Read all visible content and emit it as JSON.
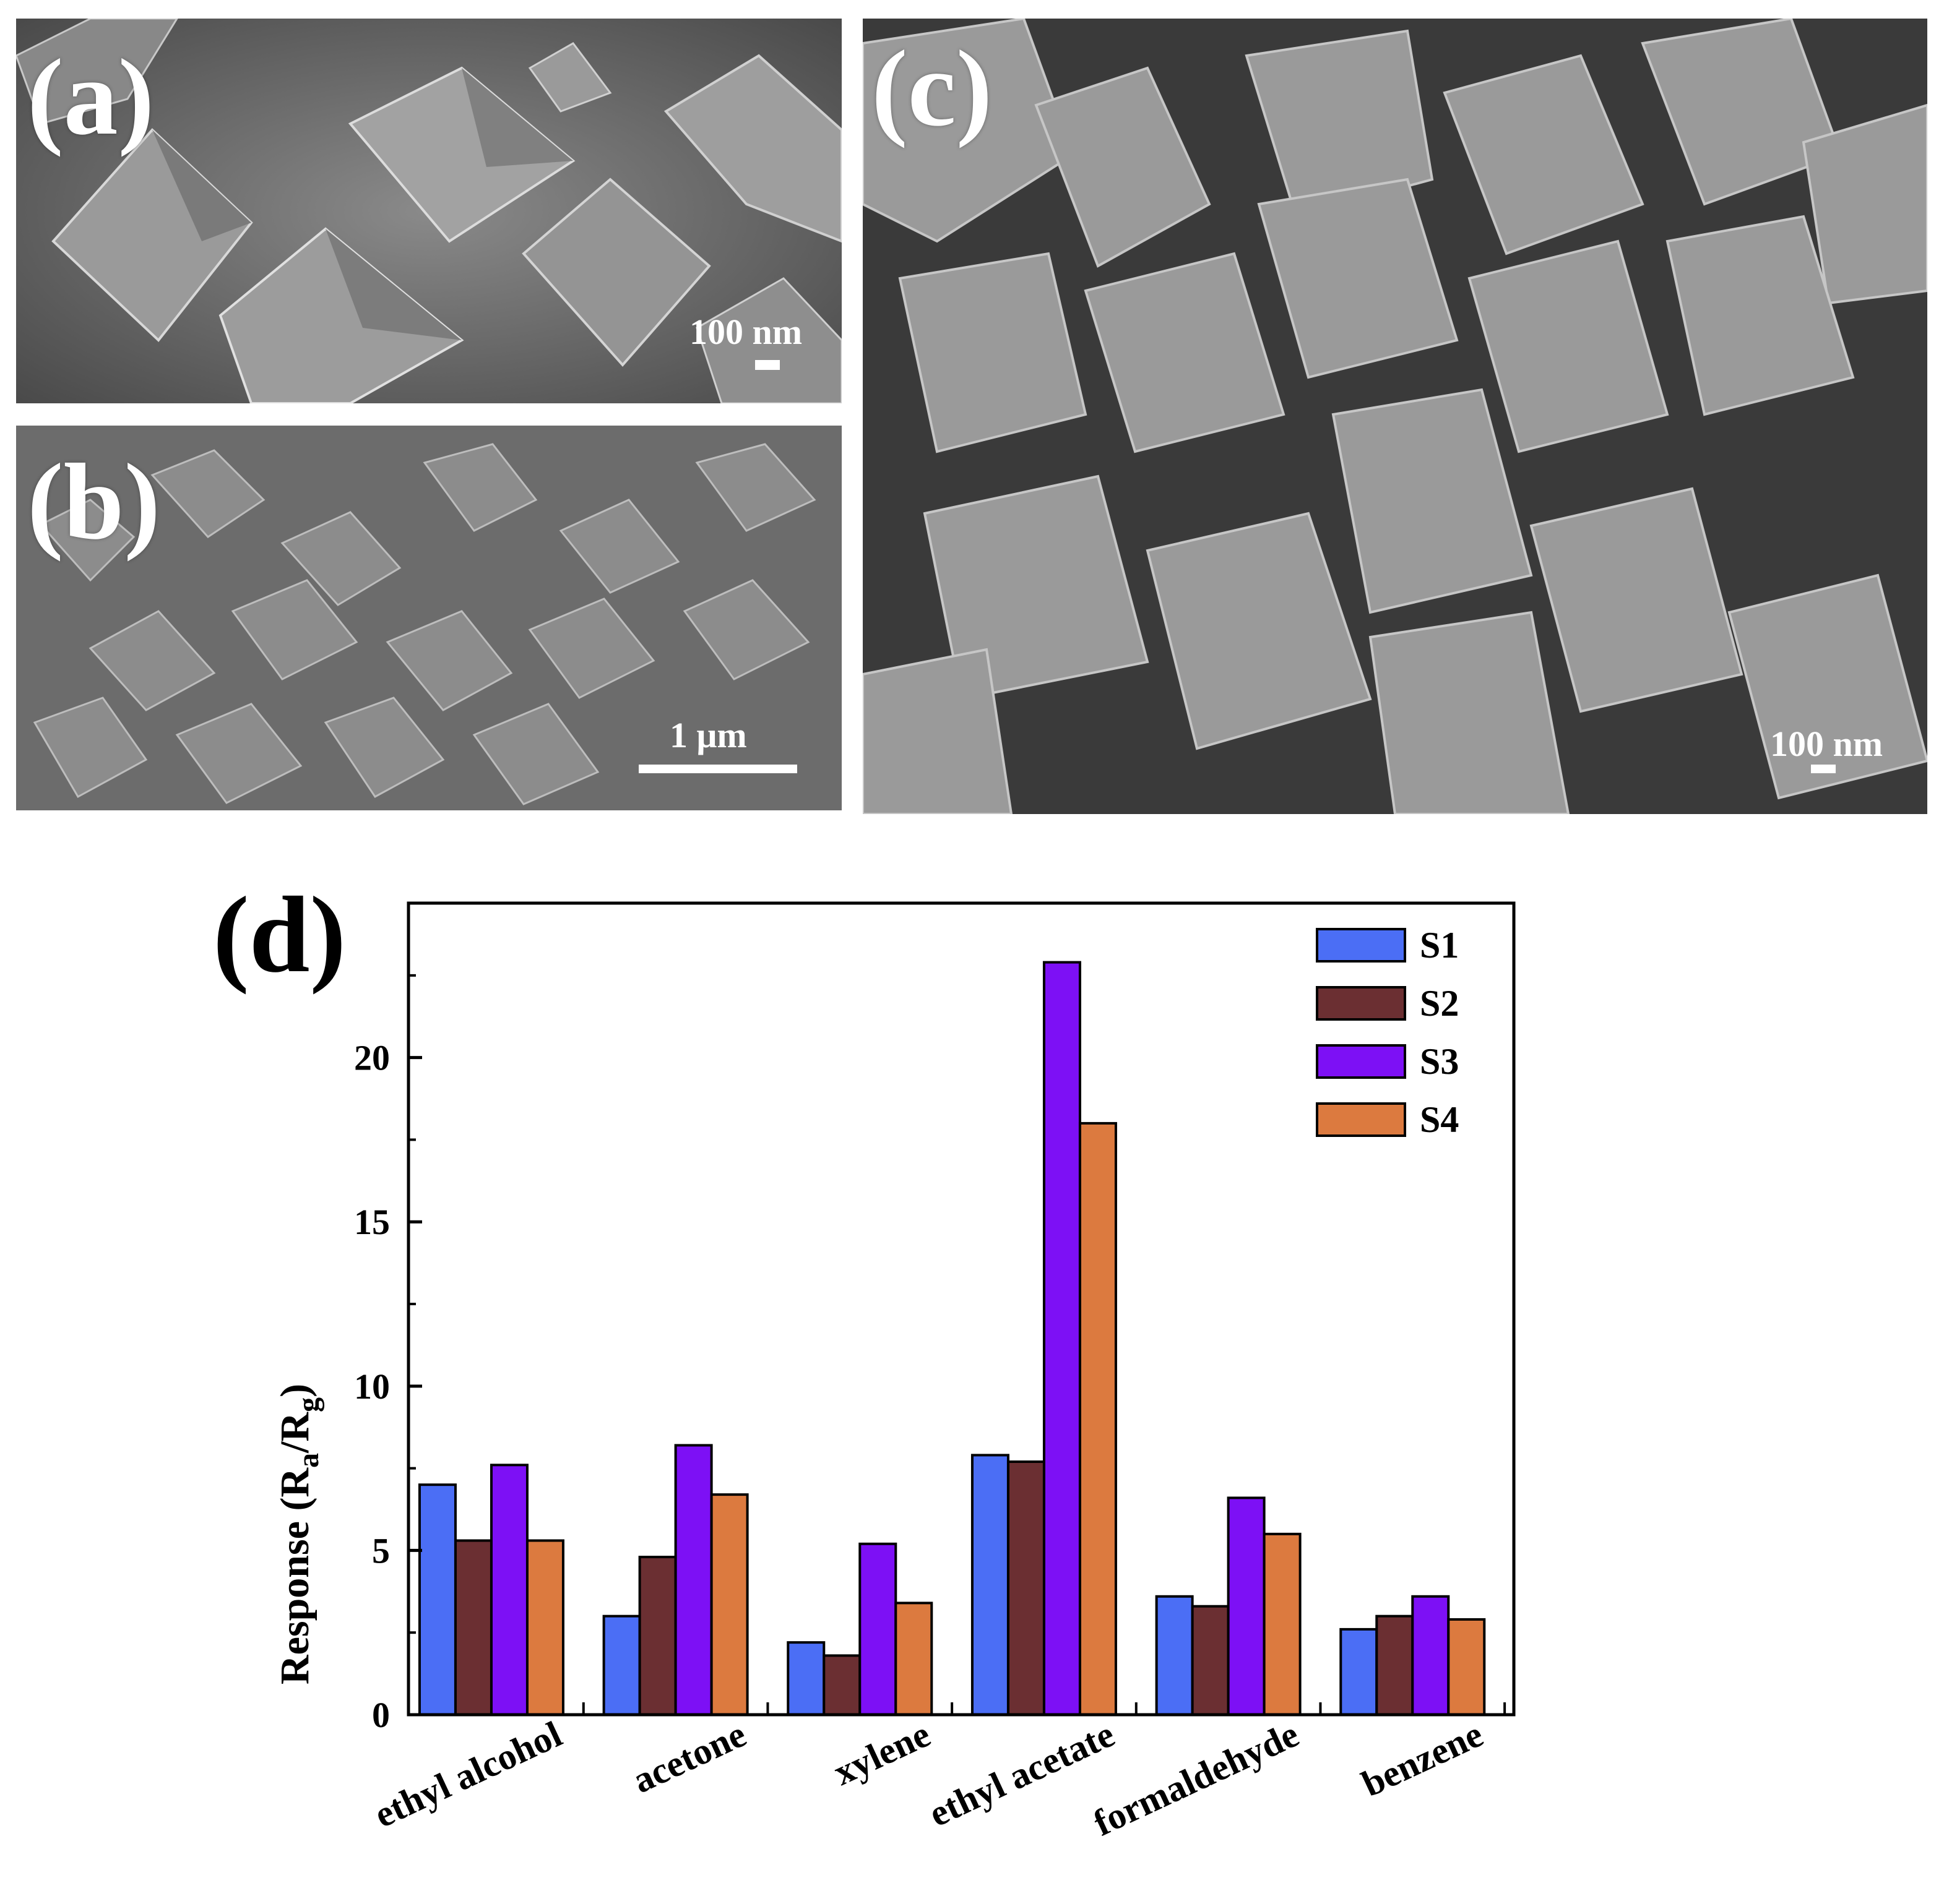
{
  "panels": {
    "a": {
      "letter": "(a)",
      "scale": "100 nm"
    },
    "b": {
      "letter": "(b)",
      "scale": "1 μm"
    },
    "c": {
      "letter": "(c)",
      "scale": "100 nm"
    },
    "d": {
      "letter": "(d)"
    }
  },
  "chart_data": {
    "type": "bar",
    "ylabel": {
      "main": "Response (R",
      "sub1": "a",
      "mid": "/R",
      "sub2": "g",
      "end": ")"
    },
    "xlabel": "",
    "ylim": [
      0,
      24.7
    ],
    "yticks": [
      0,
      5,
      10,
      15,
      20
    ],
    "categories": [
      "ethyl alcohol",
      "acetone",
      "xylene",
      "ethyl acetate",
      "formaldehyde",
      "benzene"
    ],
    "series": [
      {
        "name": "S1",
        "color": "#4b6ef5",
        "values": [
          7.0,
          3.0,
          2.2,
          7.9,
          3.6,
          2.6
        ]
      },
      {
        "name": "S2",
        "color": "#6b2f32",
        "values": [
          5.3,
          4.8,
          1.8,
          7.7,
          3.3,
          3.0
        ]
      },
      {
        "name": "S3",
        "color": "#7d10f5",
        "values": [
          7.6,
          8.2,
          5.2,
          22.9,
          6.6,
          3.6
        ]
      },
      {
        "name": "S4",
        "color": "#dc7a3f",
        "values": [
          5.3,
          6.7,
          3.4,
          18.0,
          5.5,
          2.9
        ]
      }
    ],
    "legend_position": "top-right",
    "grid": false
  }
}
